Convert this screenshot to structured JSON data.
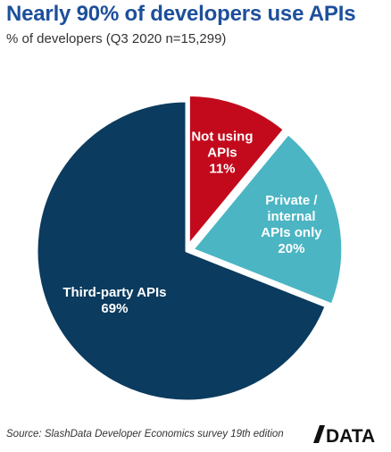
{
  "header": {
    "title": "Nearly 90% of developers use APIs",
    "subtitle": "% of developers (Q3 2020 n=15,299)"
  },
  "footer": {
    "source": "Source: SlashData Developer Economics survey 19th edition",
    "logo_text": "DATA"
  },
  "chart_data": {
    "type": "pie",
    "title": "Nearly 90% of developers use APIs",
    "subtitle": "% of developers (Q3 2020 n=15,299)",
    "slices": [
      {
        "label": "Not using APIs",
        "value": 11,
        "value_label": "11%",
        "color": "#c20a1c",
        "label_lines": [
          "Not using",
          "APIs"
        ]
      },
      {
        "label": "Private / internal APIs only",
        "value": 20,
        "value_label": "20%",
        "color": "#4bb5c3",
        "label_lines": [
          "Private /",
          "internal",
          "APIs only"
        ]
      },
      {
        "label": "Third-party APIs",
        "value": 69,
        "value_label": "69%",
        "color": "#0b3b5e",
        "label_lines": [
          "Third-party APIs"
        ]
      }
    ]
  }
}
